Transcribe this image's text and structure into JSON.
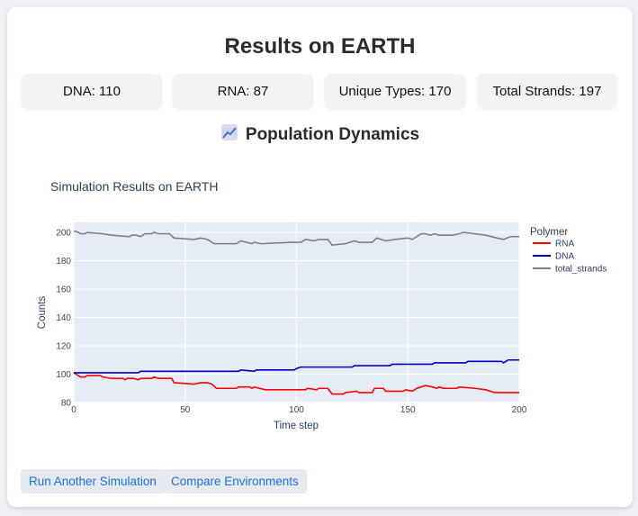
{
  "title": "Results on EARTH",
  "stats": [
    "DNA: 110",
    "RNA: 87",
    "Unique Types: 170",
    "Total Strands: 197"
  ],
  "section": {
    "icon": "chart-increasing-icon",
    "emoji": "📈",
    "title": "Population Dynamics"
  },
  "buttons": {
    "run_again": "Run Another Simulation",
    "compare": "Compare Environments"
  },
  "chart_data": {
    "type": "line",
    "title": "Simulation Results on EARTH",
    "xlabel": "Time step",
    "ylabel": "Counts",
    "xlim": [
      0,
      200
    ],
    "ylim": [
      80,
      207
    ],
    "xticks": [
      0,
      50,
      100,
      150,
      200
    ],
    "yticks": [
      80,
      100,
      120,
      140,
      160,
      180,
      200
    ],
    "grid": true,
    "legend_title": "Polymer",
    "legend_position": "right",
    "series": [
      {
        "name": "RNA",
        "color": "#ff0000",
        "points": [
          [
            0,
            101
          ],
          [
            2,
            99
          ],
          [
            3,
            98
          ],
          [
            5,
            98
          ],
          [
            6,
            99
          ],
          [
            12,
            99
          ],
          [
            13,
            98
          ],
          [
            17,
            97
          ],
          [
            22,
            97
          ],
          [
            23,
            96
          ],
          [
            24,
            97
          ],
          [
            27,
            97
          ],
          [
            29,
            96
          ],
          [
            30,
            97
          ],
          [
            35,
            97
          ],
          [
            36,
            98
          ],
          [
            38,
            97
          ],
          [
            44,
            97
          ],
          [
            45,
            94
          ],
          [
            54,
            93
          ],
          [
            57,
            94
          ],
          [
            60,
            94
          ],
          [
            62,
            93
          ],
          [
            64,
            90
          ],
          [
            73,
            90
          ],
          [
            74,
            91
          ],
          [
            79,
            91
          ],
          [
            80,
            90
          ],
          [
            81,
            91
          ],
          [
            86,
            89
          ],
          [
            104,
            89
          ],
          [
            105,
            90
          ],
          [
            109,
            89
          ],
          [
            110,
            90
          ],
          [
            114,
            90
          ],
          [
            116,
            86
          ],
          [
            121,
            86
          ],
          [
            122,
            87
          ],
          [
            127,
            88
          ],
          [
            128,
            87
          ],
          [
            134,
            87
          ],
          [
            135,
            90
          ],
          [
            139,
            90
          ],
          [
            140,
            88
          ],
          [
            148,
            88
          ],
          [
            149,
            89
          ],
          [
            152,
            88
          ],
          [
            154,
            90
          ],
          [
            156,
            91
          ],
          [
            158,
            92
          ],
          [
            161,
            91
          ],
          [
            163,
            90
          ],
          [
            164,
            91
          ],
          [
            166,
            90
          ],
          [
            172,
            90
          ],
          [
            173,
            91
          ],
          [
            180,
            90
          ],
          [
            185,
            89
          ],
          [
            189,
            87
          ],
          [
            200,
            87
          ]
        ]
      },
      {
        "name": "DNA",
        "color": "#0000cc",
        "points": [
          [
            0,
            101
          ],
          [
            29,
            101
          ],
          [
            30,
            102
          ],
          [
            74,
            102
          ],
          [
            75,
            103
          ],
          [
            81,
            102
          ],
          [
            82,
            103
          ],
          [
            99,
            103
          ],
          [
            100,
            104
          ],
          [
            102,
            105
          ],
          [
            125,
            105
          ],
          [
            126,
            106
          ],
          [
            142,
            106
          ],
          [
            143,
            107
          ],
          [
            161,
            107
          ],
          [
            162,
            108
          ],
          [
            176,
            108
          ],
          [
            177,
            109
          ],
          [
            192,
            109
          ],
          [
            193,
            108
          ],
          [
            195,
            110
          ],
          [
            200,
            110
          ]
        ]
      },
      {
        "name": "total_strands",
        "color": "#808080",
        "points": [
          [
            0,
            201
          ],
          [
            2,
            200
          ],
          [
            3,
            199
          ],
          [
            5,
            199
          ],
          [
            6,
            200
          ],
          [
            13,
            199
          ],
          [
            17,
            198
          ],
          [
            25,
            197
          ],
          [
            26,
            198
          ],
          [
            28,
            198
          ],
          [
            30,
            197
          ],
          [
            32,
            199
          ],
          [
            35,
            199
          ],
          [
            36,
            200
          ],
          [
            38,
            199
          ],
          [
            43,
            199
          ],
          [
            45,
            196
          ],
          [
            54,
            195
          ],
          [
            57,
            196
          ],
          [
            60,
            195
          ],
          [
            63,
            192
          ],
          [
            73,
            192
          ],
          [
            75,
            194
          ],
          [
            80,
            192
          ],
          [
            81,
            193
          ],
          [
            84,
            192
          ],
          [
            98,
            193
          ],
          [
            102,
            193
          ],
          [
            104,
            195
          ],
          [
            108,
            194
          ],
          [
            110,
            195
          ],
          [
            114,
            195
          ],
          [
            116,
            191
          ],
          [
            122,
            192
          ],
          [
            126,
            194
          ],
          [
            128,
            193
          ],
          [
            134,
            193
          ],
          [
            136,
            196
          ],
          [
            140,
            194
          ],
          [
            144,
            195
          ],
          [
            150,
            196
          ],
          [
            152,
            195
          ],
          [
            154,
            197
          ],
          [
            156,
            199
          ],
          [
            158,
            199
          ],
          [
            160,
            198
          ],
          [
            162,
            199
          ],
          [
            164,
            198
          ],
          [
            170,
            198
          ],
          [
            173,
            199
          ],
          [
            175,
            200
          ],
          [
            180,
            199
          ],
          [
            185,
            198
          ],
          [
            190,
            196
          ],
          [
            193,
            195
          ],
          [
            196,
            197
          ],
          [
            200,
            197
          ]
        ]
      }
    ]
  }
}
